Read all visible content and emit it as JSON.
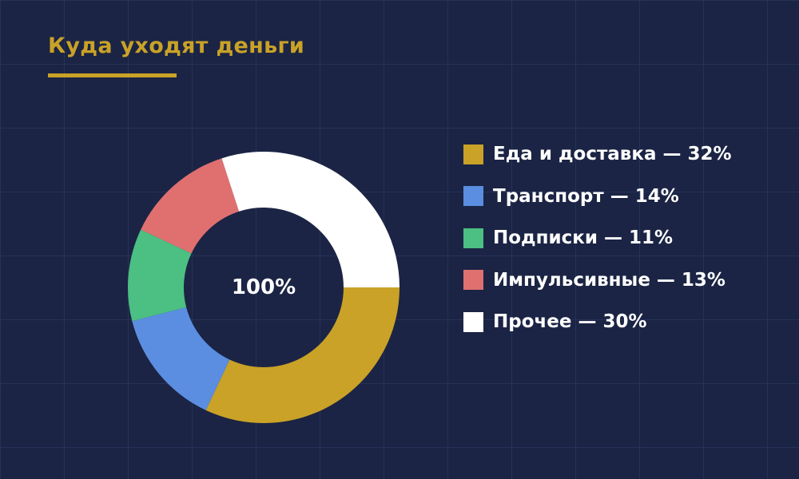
{
  "title": "Куда уходят деньги",
  "colors": {
    "background": "#1b2444",
    "accent": "#c9a227"
  },
  "chart_data": {
    "type": "pie",
    "variant": "donut",
    "title": "Куда уходят деньги",
    "center_label": "100%",
    "legend_position": "right",
    "categories": [
      "Еда и доставка",
      "Транспорт",
      "Подписки",
      "Импульсивные",
      "Прочее"
    ],
    "values": [
      32,
      14,
      11,
      13,
      30
    ],
    "colors": [
      "#c9a227",
      "#5b8ee0",
      "#4cbf83",
      "#e07070",
      "#ffffff"
    ],
    "legend_labels": [
      "Еда и доставка — 32%",
      "Транспорт — 14%",
      "Подписки — 11%",
      "Импульсивные — 13%",
      "Прочее — 30%"
    ]
  }
}
